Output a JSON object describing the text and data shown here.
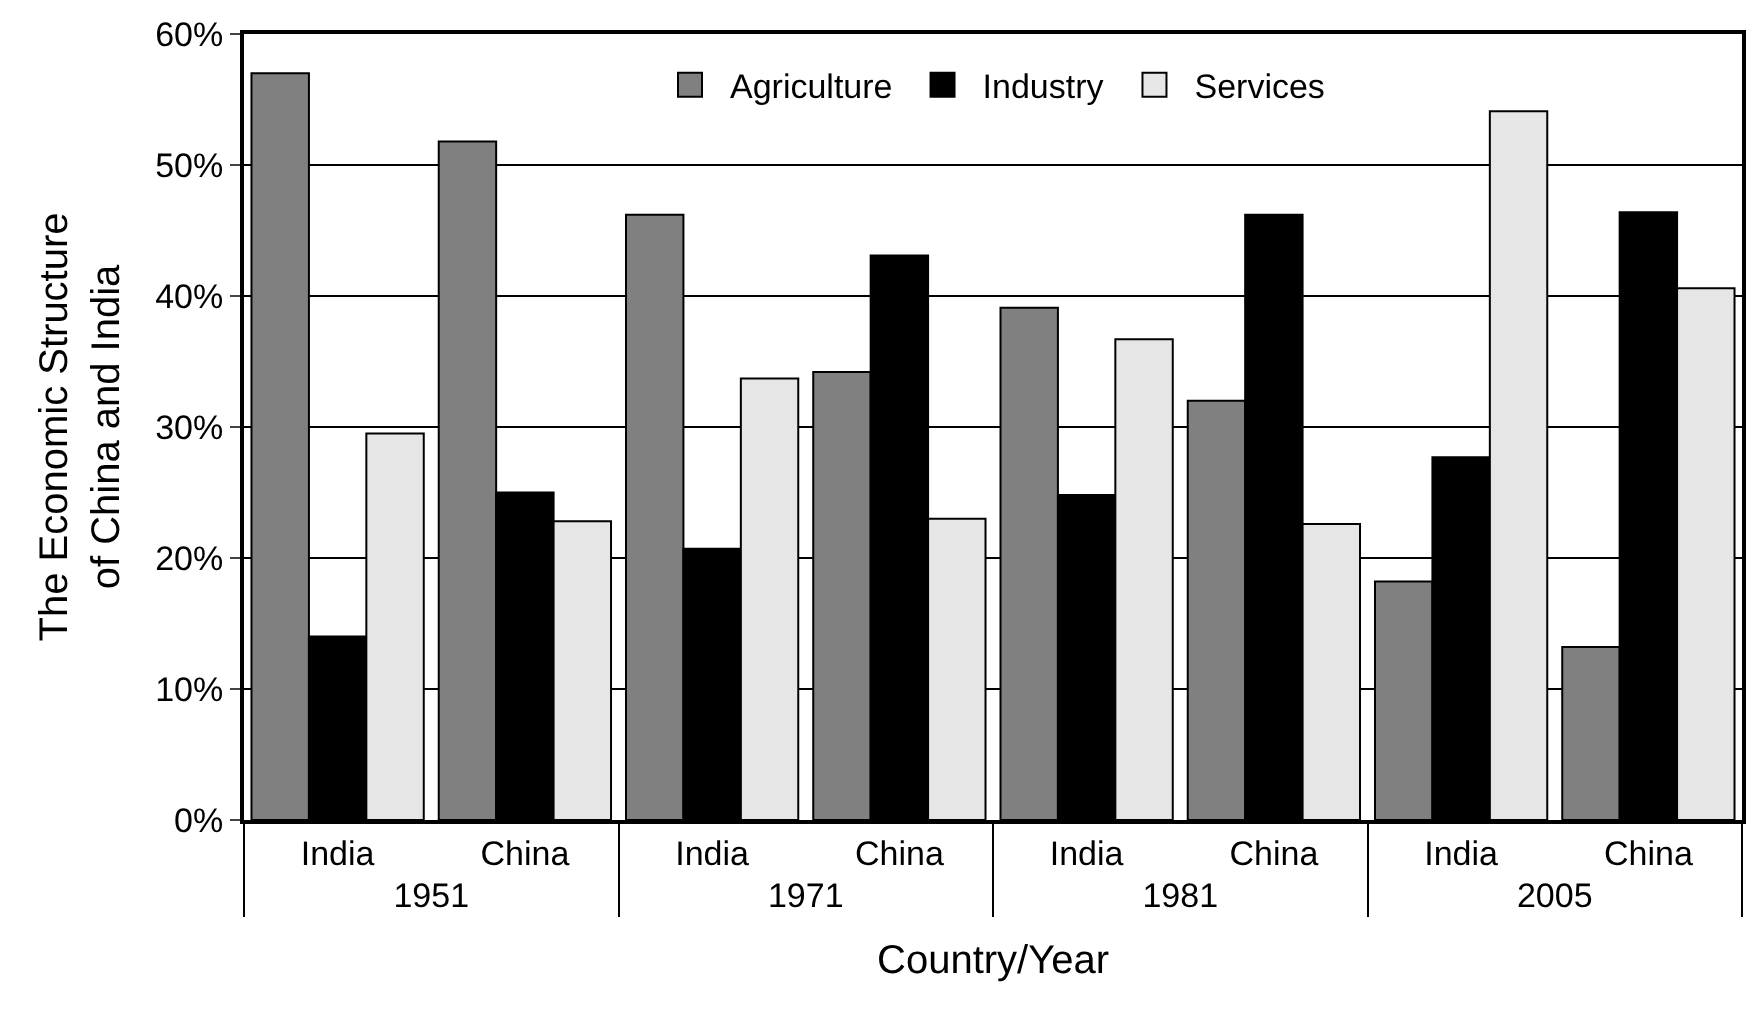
{
  "chart_data": {
    "type": "bar",
    "xlabel": "Country/Year",
    "ylabel": "The Economic Structure\nof China and India",
    "categories": [
      "India",
      "China",
      "India",
      "China",
      "India",
      "China",
      "India",
      "China"
    ],
    "annotations": [
      "1951",
      "1971",
      "1981",
      "2005"
    ],
    "series": [
      {
        "name": "Agriculture",
        "color": "#808080",
        "values": [
          57.0,
          51.8,
          46.2,
          34.2,
          39.1,
          32.0,
          18.2,
          13.2
        ]
      },
      {
        "name": "Industry",
        "color": "#000000",
        "values": [
          14.0,
          25.0,
          20.7,
          43.1,
          24.8,
          46.2,
          27.7,
          46.4
        ]
      },
      {
        "name": "Services",
        "color": "#e6e6e6",
        "values": [
          29.5,
          22.8,
          33.7,
          23.0,
          36.7,
          22.6,
          54.1,
          40.6
        ]
      }
    ],
    "ylim": [
      0,
      60
    ],
    "yticks": [
      {
        "value": 0,
        "label": "0%"
      },
      {
        "value": 10,
        "label": "10%"
      },
      {
        "value": 20,
        "label": "20%"
      },
      {
        "value": 30,
        "label": "30%"
      },
      {
        "value": 40,
        "label": "40%"
      },
      {
        "value": 50,
        "label": "50%"
      },
      {
        "value": 60,
        "label": "60%"
      }
    ],
    "grid": "y",
    "legend": "top"
  }
}
